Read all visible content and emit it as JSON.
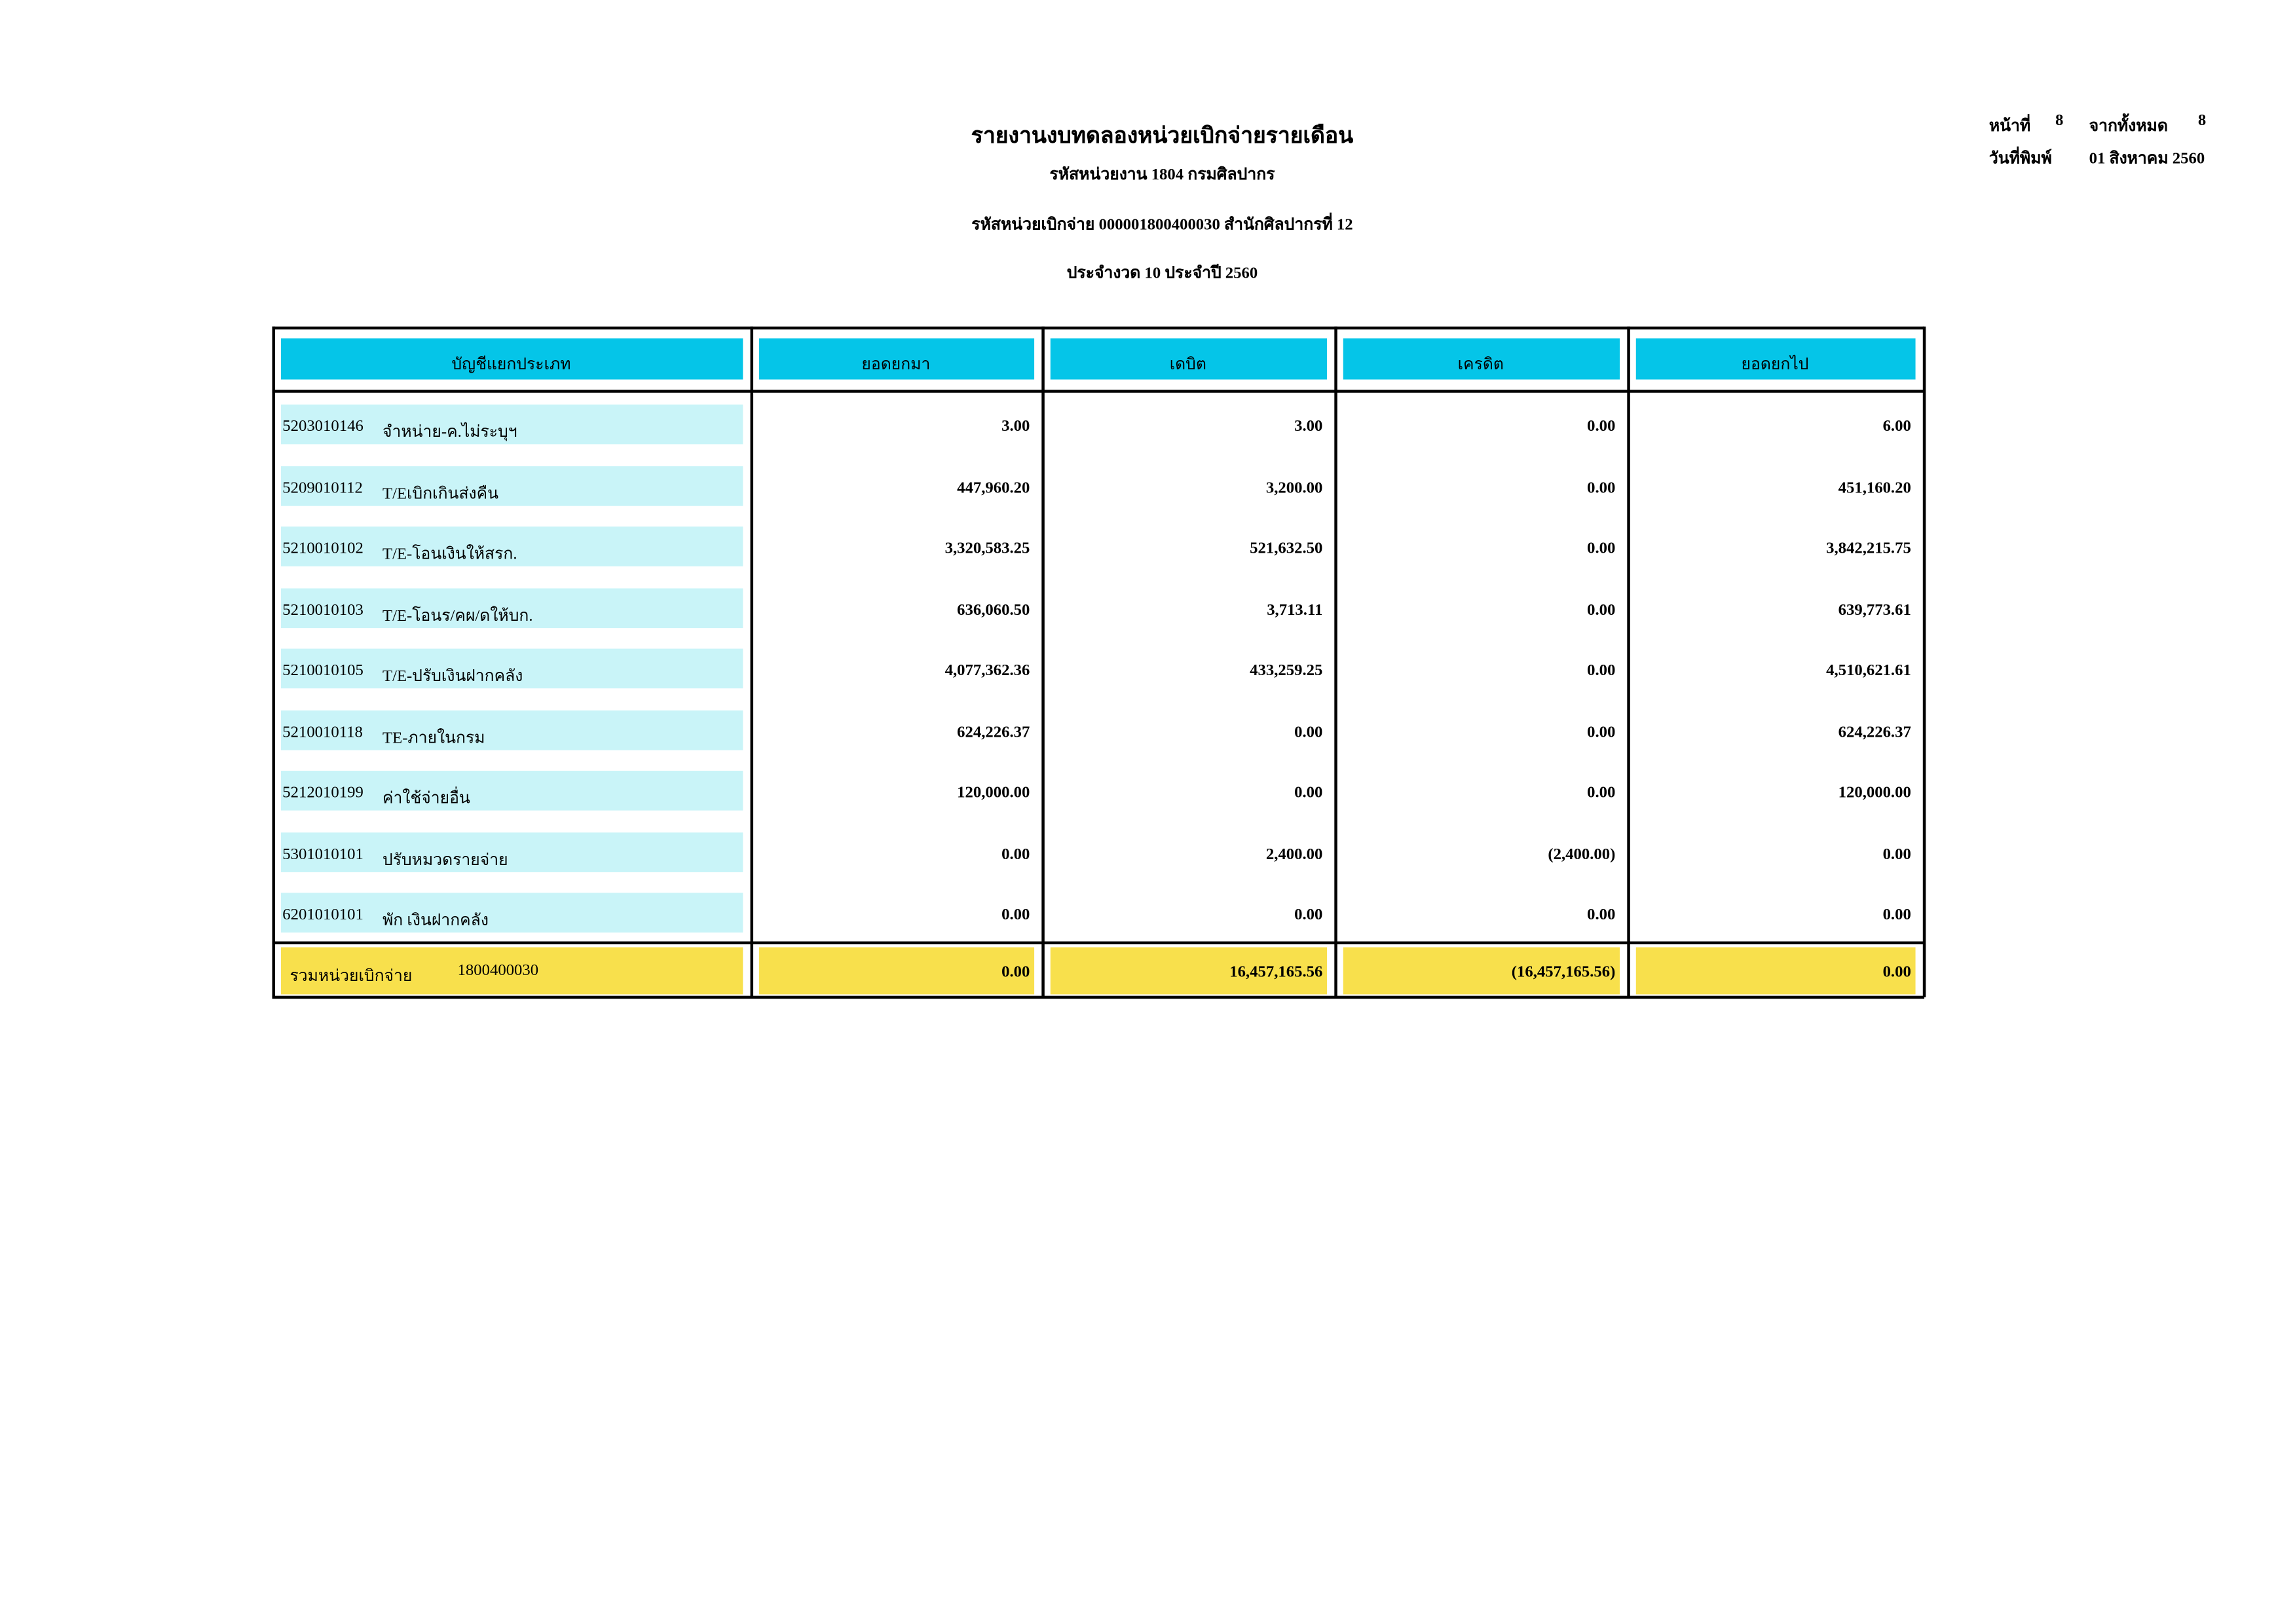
{
  "header": {
    "title": "รายงานงบทดลองหน่วยเบิกจ่ายรายเดือน",
    "unit_line": "รหัสหน่วยงาน 1804 กรมศิลปากร",
    "disbursing_unit_line": "รหัสหน่วยเบิกจ่าย 000001800400030 สำนักศิลปากรที่ 12",
    "period_line": "ประจำงวด 10 ประจำปี 2560",
    "page_label": "หน้าที่",
    "page_no": "8",
    "of_label": "จากทั้งหมด",
    "page_total": "8",
    "print_date_label": "วันที่พิมพ์",
    "print_date": "01 สิงหาคม 2560"
  },
  "table": {
    "columns": [
      "บัญชีแยกประเภท",
      "ยอดยกมา",
      "เดบิต",
      "เครดิต",
      "ยอดยกไป"
    ],
    "rows": [
      [
        "5203010146",
        "จำหน่าย-ค.ไม่ระบุฯ",
        "3.00",
        "3.00",
        "0.00",
        "6.00"
      ],
      [
        "5209010112",
        "T/Eเบิกเกินส่งคืน",
        "447,960.20",
        "3,200.00",
        "0.00",
        "451,160.20"
      ],
      [
        "5210010102",
        "T/E-โอนเงินให้สรก.",
        "3,320,583.25",
        "521,632.50",
        "0.00",
        "3,842,215.75"
      ],
      [
        "5210010103",
        "T/E-โอนร/คผ/ดให้บก.",
        "636,060.50",
        "3,713.11",
        "0.00",
        "639,773.61"
      ],
      [
        "5210010105",
        "T/E-ปรับเงินฝากคลัง",
        "4,077,362.36",
        "433,259.25",
        "0.00",
        "4,510,621.61"
      ],
      [
        "5210010118",
        "TE-ภายในกรม",
        "624,226.37",
        "0.00",
        "0.00",
        "624,226.37"
      ],
      [
        "5212010199",
        "ค่าใช้จ่ายอื่น",
        "120,000.00",
        "0.00",
        "0.00",
        "120,000.00"
      ],
      [
        "5301010101",
        "ปรับหมวดรายจ่าย",
        "0.00",
        "2,400.00",
        "(2,400.00)",
        "0.00"
      ],
      [
        "6201010101",
        "พัก เงินฝากคลัง",
        "0.00",
        "0.00",
        "0.00",
        "0.00"
      ]
    ],
    "total": [
      "รวมหน่วยเบิกจ่าย",
      "1800400030",
      "0.00",
      "16,457,165.56",
      "(16,457,165.56)",
      "0.00"
    ]
  }
}
